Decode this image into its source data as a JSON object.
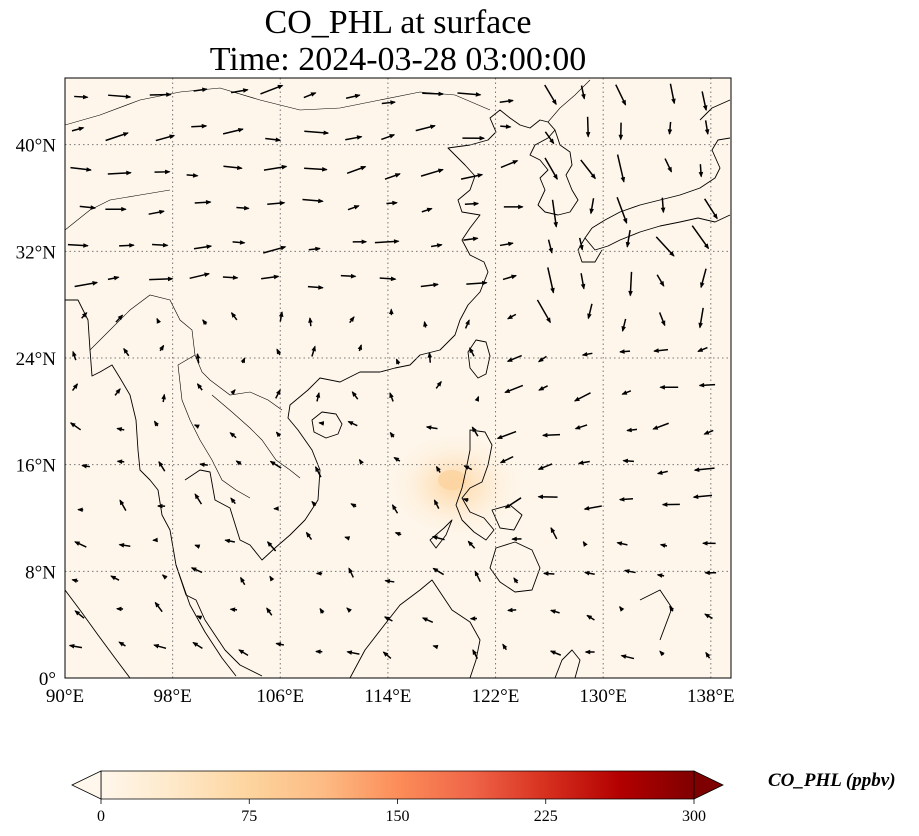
{
  "title": {
    "line1": "CO_PHL at surface",
    "line2": "Time: 2024-03-28 03:00:00"
  },
  "map": {
    "lon_range": [
      90,
      139.5
    ],
    "lat_range": [
      0,
      45
    ],
    "lon_ticks": [
      {
        "value": 90,
        "label": "90°E"
      },
      {
        "value": 98,
        "label": "98°E"
      },
      {
        "value": 106,
        "label": "106°E"
      },
      {
        "value": 114,
        "label": "114°E"
      },
      {
        "value": 122,
        "label": "122°E"
      },
      {
        "value": 130,
        "label": "130°E"
      },
      {
        "value": 138,
        "label": "138°E"
      }
    ],
    "lat_ticks": [
      {
        "value": 0,
        "label": "0°"
      },
      {
        "value": 8,
        "label": "8°N"
      },
      {
        "value": 16,
        "label": "16°N"
      },
      {
        "value": 24,
        "label": "24°N"
      },
      {
        "value": 32,
        "label": "32°N"
      },
      {
        "value": 40,
        "label": "40°N"
      }
    ],
    "gridlines": true,
    "background_color": "#fef6ea",
    "coast_color": "#000000",
    "plume": {
      "lon": 118.5,
      "lat": 15.0,
      "peak_ppbv": 40
    }
  },
  "colorbar": {
    "label": "CO_PHL (ppbv)",
    "min": 0,
    "max": 300,
    "extend": "both",
    "ticks": [
      "0",
      "75",
      "150",
      "225",
      "300"
    ],
    "colormap": "OrRd",
    "colors": [
      "#fff7ec",
      "#fee8c8",
      "#fdd49e",
      "#fdbb84",
      "#fc8d59",
      "#ef6548",
      "#d7301f",
      "#b30000",
      "#7f0000"
    ]
  }
}
